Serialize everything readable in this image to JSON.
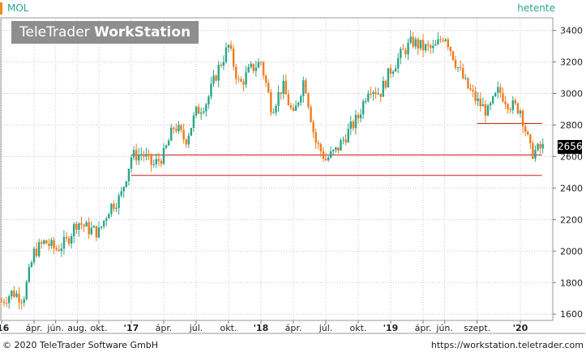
{
  "header": {
    "ticker": "MOL",
    "period": "hetente"
  },
  "watermark": {
    "brand": "TeleTrader",
    "product": "WorkStation"
  },
  "footer": {
    "copyright": "© 2020 TeleTrader Software GmbH",
    "url": "https://workstation.teletrader.com"
  },
  "last_price_label": "2656",
  "colors": {
    "up": "#2ba58a",
    "down": "#f07b1e",
    "line": "#cc1f1f",
    "grid": "#c8c8c8"
  },
  "chart_data": {
    "type": "candlestick",
    "title": "",
    "ylim": [
      1560,
      3480
    ],
    "y_ticks": [
      1600,
      1800,
      2000,
      2200,
      2400,
      2600,
      2800,
      3000,
      3200,
      3400
    ],
    "x_ticks": [
      "'16",
      "ápr.",
      "jún.",
      "aug.",
      "okt.",
      "'17",
      "ápr.",
      "júl.",
      "okt.",
      "'18",
      "ápr.",
      "júl.",
      "okt.",
      "'19",
      "ápr.",
      "jún.",
      "szept.",
      "'20"
    ],
    "last_value": 2656,
    "horizontal_lines": [
      {
        "value": 2610,
        "from": "2017-01",
        "to": "2020-03"
      },
      {
        "value": 2480,
        "from": "2017-01",
        "to": "2020-03"
      },
      {
        "value": 2810,
        "from": "2019-09",
        "to": "2020-03"
      }
    ],
    "series": [
      {
        "name": "MOL",
        "path": [
          [
            "2016-01",
            1680
          ],
          [
            "2016-02",
            1740
          ],
          [
            "2016-03",
            1700
          ],
          [
            "2016-04",
            1990
          ],
          [
            "2016-05",
            2060
          ],
          [
            "2016-06",
            2010
          ],
          [
            "2016-07",
            2060
          ],
          [
            "2016-08",
            2190
          ],
          [
            "2016-09",
            2140
          ],
          [
            "2016-10",
            2120
          ],
          [
            "2016-11",
            2280
          ],
          [
            "2016-12",
            2340
          ],
          [
            "2017-01",
            2600
          ],
          [
            "2017-02",
            2620
          ],
          [
            "2017-03",
            2540
          ],
          [
            "2017-04",
            2610
          ],
          [
            "2017-05",
            2800
          ],
          [
            "2017-06",
            2700
          ],
          [
            "2017-07",
            2880
          ],
          [
            "2017-08",
            2950
          ],
          [
            "2017-09",
            3150
          ],
          [
            "2017-10",
            3300
          ],
          [
            "2017-11",
            3050
          ],
          [
            "2017-12",
            3150
          ],
          [
            "2018-01",
            3200
          ],
          [
            "2018-02",
            2900
          ],
          [
            "2018-03",
            3050
          ],
          [
            "2018-04",
            2850
          ],
          [
            "2018-05",
            3100
          ],
          [
            "2018-06",
            2700
          ],
          [
            "2018-07",
            2580
          ],
          [
            "2018-08",
            2640
          ],
          [
            "2018-09",
            2750
          ],
          [
            "2018-10",
            2850
          ],
          [
            "2018-11",
            3050
          ],
          [
            "2018-12",
            3000
          ],
          [
            "2019-01",
            3150
          ],
          [
            "2019-02",
            3250
          ],
          [
            "2019-03",
            3330
          ],
          [
            "2019-04",
            3290
          ],
          [
            "2019-05",
            3280
          ],
          [
            "2019-06",
            3380
          ],
          [
            "2019-07",
            3200
          ],
          [
            "2019-08",
            3050
          ],
          [
            "2019-09",
            2950
          ],
          [
            "2019-10",
            2880
          ],
          [
            "2019-11",
            3020
          ],
          [
            "2019-12",
            2930
          ],
          [
            "2020-01",
            2900
          ],
          [
            "2020-02",
            2620
          ],
          [
            "2020-03",
            2656
          ]
        ]
      }
    ]
  }
}
